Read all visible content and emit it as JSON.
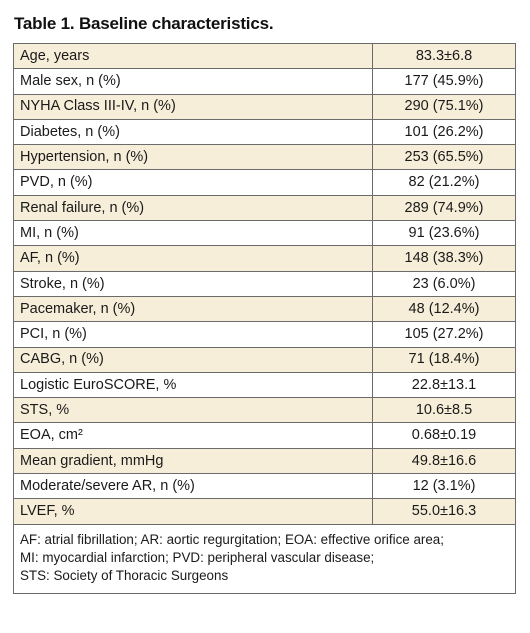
{
  "title": "Table 1. Baseline characteristics.",
  "rows": [
    {
      "label": "Age, years",
      "value": "83.3±6.8"
    },
    {
      "label": "Male sex, n (%)",
      "value": "177 (45.9%)"
    },
    {
      "label": "NYHA Class III-IV, n (%)",
      "value": "290 (75.1%)"
    },
    {
      "label": "Diabetes, n (%)",
      "value": "101 (26.2%)"
    },
    {
      "label": "Hypertension, n (%)",
      "value": "253 (65.5%)"
    },
    {
      "label": "PVD, n (%)",
      "value": "82 (21.2%)"
    },
    {
      "label": "Renal failure, n (%)",
      "value": "289 (74.9%)"
    },
    {
      "label": "MI, n (%)",
      "value": "91 (23.6%)"
    },
    {
      "label": "AF, n (%)",
      "value": "148 (38.3%)"
    },
    {
      "label": "Stroke, n (%)",
      "value": "23 (6.0%)"
    },
    {
      "label": "Pacemaker, n (%)",
      "value": "48 (12.4%)"
    },
    {
      "label": "PCI, n (%)",
      "value": "105 (27.2%)"
    },
    {
      "label": "CABG, n (%)",
      "value": "71 (18.4%)"
    },
    {
      "label": "Logistic EuroSCORE, %",
      "value": "22.8±13.1"
    },
    {
      "label": "STS, %",
      "value": "10.6±8.5"
    },
    {
      "label": "EOA, cm²",
      "value": "0.68±0.19"
    },
    {
      "label": "Mean gradient, mmHg",
      "value": "49.8±16.6"
    },
    {
      "label": "Moderate/severe AR, n (%)",
      "value": "12 (3.1%)"
    },
    {
      "label": "LVEF, %",
      "value": "55.0±16.3"
    }
  ],
  "footnote": [
    "AF: atrial fibrillation; AR: aortic regurgitation; EOA: effective orifice area;",
    "MI: myocardial infarction; PVD: peripheral vascular disease;",
    "STS: Society of Thoracic Surgeons"
  ],
  "colors": {
    "shaded_row": "#f7eed9",
    "border": "#6b6b6b"
  }
}
